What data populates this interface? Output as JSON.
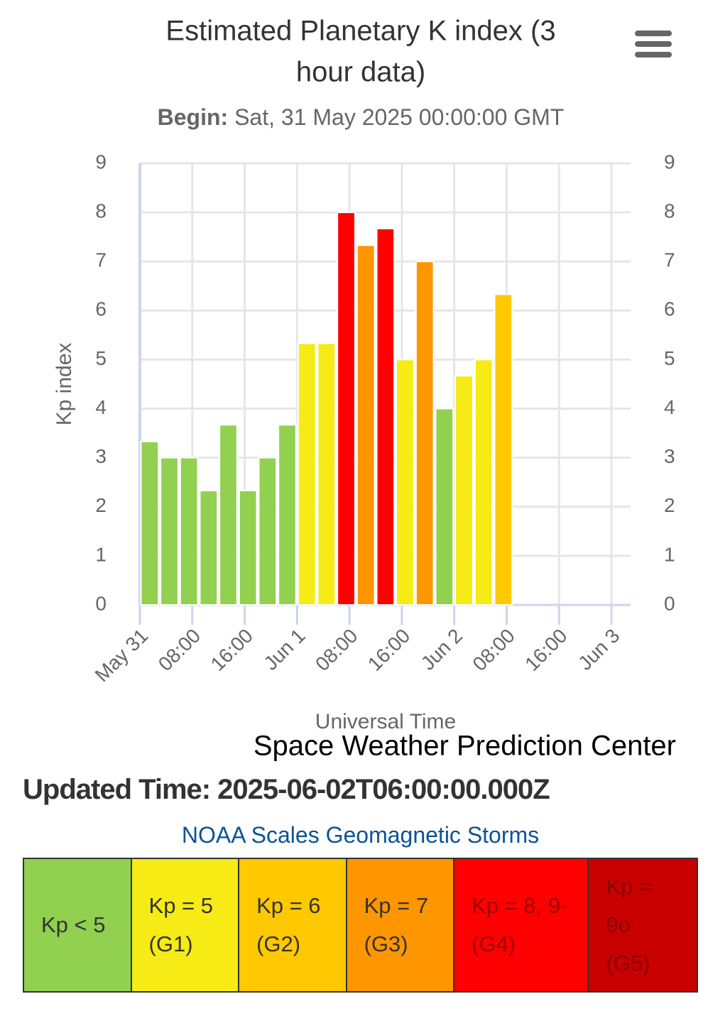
{
  "chart_data": {
    "type": "bar",
    "title": "Estimated Planetary K index (3 hour data)",
    "subtitle_label": "Begin:",
    "subtitle": "Sat, 31 May 2025 00:00:00 GMT",
    "y_label": "Kp index",
    "x_label": "Universal Time",
    "credits": "Space Weather Prediction Center",
    "x": [
      0,
      3,
      6,
      9,
      12,
      15,
      18,
      21,
      24,
      27,
      30,
      33,
      36,
      39,
      42,
      45,
      48,
      51,
      54
    ],
    "bar_width": 3,
    "values": [
      3.33,
      3,
      3,
      2.33,
      3.67,
      2.33,
      3,
      3.67,
      5.33,
      5.33,
      8,
      7.33,
      7.67,
      5,
      7,
      4,
      4.67,
      5,
      6.33
    ],
    "colors": [
      "#92d050",
      "#92d050",
      "#92d050",
      "#92d050",
      "#92d050",
      "#92d050",
      "#92d050",
      "#92d050",
      "#f6eb14",
      "#f6eb14",
      "#ff0000",
      "#ff9600",
      "#ff0000",
      "#f6eb14",
      "#ff9600",
      "#92d050",
      "#f6eb14",
      "#f6eb14",
      "#ffc800"
    ],
    "xlim": [
      0,
      72
    ],
    "xticks": [
      {
        "value": 0,
        "label": "May 31"
      },
      {
        "value": 8,
        "label": "08:00"
      },
      {
        "value": 16,
        "label": "16:00"
      },
      {
        "value": 24,
        "label": "Jun 1"
      },
      {
        "value": 32,
        "label": "08:00"
      },
      {
        "value": 40,
        "label": "16:00"
      },
      {
        "value": 48,
        "label": "Jun 2"
      },
      {
        "value": 56,
        "label": "08:00"
      },
      {
        "value": 64,
        "label": "16:00"
      },
      {
        "value": 72,
        "label": "Jun 3"
      }
    ],
    "ylim": [
      0,
      9
    ],
    "yticks": [
      0,
      1,
      2,
      3,
      4,
      5,
      6,
      7,
      8,
      9
    ],
    "y2lim": [
      0,
      9
    ],
    "y2ticks": [
      0,
      1,
      2,
      3,
      4,
      5,
      6,
      7,
      8,
      9
    ],
    "grid": true
  },
  "updated": "Updated Time: 2025-06-02T06:00:00.000Z",
  "scale_link": "NOAA Scales Geomagnetic Storms",
  "legend_cells": [
    {
      "label": "Kp < 5",
      "color": "#92d050",
      "text_color": "#333333"
    },
    {
      "label": "Kp = 5 (G1)",
      "color": "#f6eb14",
      "text_color": "#333333"
    },
    {
      "label": "Kp = 6 (G2)",
      "color": "#ffc800",
      "text_color": "#333333"
    },
    {
      "label": "Kp = 7 (G3)",
      "color": "#ff9600",
      "text_color": "#333333"
    },
    {
      "label": "Kp = 8, 9- (G4)",
      "color": "#ff0000",
      "text_color": "#a00000"
    },
    {
      "label": "Kp = 9o (G5)",
      "color": "#c80000",
      "text_color": "#8a0000"
    }
  ]
}
